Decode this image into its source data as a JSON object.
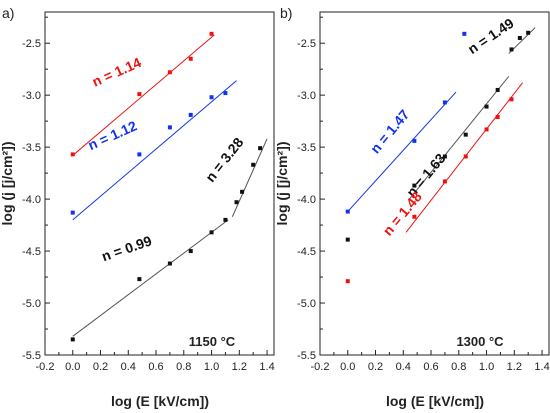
{
  "colors": {
    "red": "#ee1111",
    "blue": "#1133ee",
    "black": "#111111",
    "frame": "#222222",
    "fit_black": "#555555"
  },
  "chart_data": [
    {
      "type": "scatter",
      "panel_label": "a)",
      "temperature_label": "1150 °C",
      "xlabel": "log (E [kV/cm])",
      "ylabel": "log (j [j/cm²])",
      "xlim": [
        -0.2,
        1.45
      ],
      "ylim": [
        -5.5,
        -2.2
      ],
      "x_ticks": [
        "-0.2",
        "0.0",
        "0.2",
        "0.4",
        "0.6",
        "0.8",
        "1.0",
        "1.2",
        "1.4"
      ],
      "y_ticks": [
        "-5.5",
        "-5.0",
        "-4.5",
        "-4.0",
        "-3.5",
        "-3.0",
        "-2.5"
      ],
      "grid": false,
      "series": [
        {
          "color": "red",
          "points": [
            [
              0.0,
              -3.57
            ],
            [
              0.48,
              -2.99
            ],
            [
              0.7,
              -2.78
            ],
            [
              0.85,
              -2.65
            ],
            [
              1.0,
              -2.41
            ]
          ],
          "fit": [
            [
              0.0,
              -3.58
            ],
            [
              1.02,
              -2.42
            ]
          ]
        },
        {
          "color": "blue",
          "points": [
            [
              0.0,
              -4.13
            ],
            [
              0.48,
              -3.57
            ],
            [
              0.7,
              -3.31
            ],
            [
              0.85,
              -3.19
            ],
            [
              1.0,
              -3.02
            ],
            [
              1.1,
              -2.98
            ]
          ],
          "fit": [
            [
              0.0,
              -4.2
            ],
            [
              1.18,
              -2.86
            ]
          ]
        },
        {
          "color": "black",
          "points": [
            [
              0.0,
              -5.35
            ],
            [
              0.48,
              -4.77
            ],
            [
              0.7,
              -4.62
            ],
            [
              0.85,
              -4.5
            ],
            [
              1.0,
              -4.32
            ],
            [
              1.1,
              -4.2
            ],
            [
              1.18,
              -4.03
            ],
            [
              1.22,
              -3.93
            ],
            [
              1.3,
              -3.67
            ],
            [
              1.35,
              -3.51
            ]
          ],
          "fit": [
            [
              0.0,
              -5.32
            ],
            [
              1.12,
              -4.2
            ]
          ],
          "fit2": [
            [
              1.15,
              -4.17
            ],
            [
              1.4,
              -3.42
            ]
          ]
        }
      ],
      "annotations": [
        {
          "text": "n = 1.14",
          "color": "red",
          "x": 0.33,
          "y": -2.82,
          "angle": -24
        },
        {
          "text": "n = 1.12",
          "color": "blue",
          "x": 0.3,
          "y": -3.43,
          "angle": -24
        },
        {
          "text": "n = 0.99",
          "color": "black",
          "x": 0.4,
          "y": -4.52,
          "angle": -19
        },
        {
          "text": "n = 3.28",
          "color": "black",
          "x": 1.12,
          "y": -3.65,
          "angle": -52
        }
      ]
    },
    {
      "type": "scatter",
      "panel_label": "b)",
      "temperature_label": "1300 °C",
      "xlabel": "log (E [kV/cm])",
      "ylabel": "log (j [j/cm²])",
      "xlim": [
        -0.2,
        1.45
      ],
      "ylim": [
        -5.5,
        -2.2
      ],
      "x_ticks": [
        "-0.2",
        "0.0",
        "0.2",
        "0.4",
        "0.6",
        "0.8",
        "1.0",
        "1.2",
        "1.4"
      ],
      "y_ticks": [
        "-5.5",
        "-5.0",
        "-4.5",
        "-4.0",
        "-3.5",
        "-3.0",
        "-2.5"
      ],
      "grid": false,
      "series": [
        {
          "color": "blue",
          "points": [
            [
              0.0,
              -4.12
            ],
            [
              0.48,
              -3.44
            ],
            [
              0.7,
              -3.07
            ],
            [
              0.84,
              -2.41
            ]
          ],
          "fit": [
            [
              0.0,
              -4.12
            ],
            [
              0.78,
              -2.97
            ]
          ]
        },
        {
          "color": "black",
          "points": [
            [
              0.0,
              -4.39
            ],
            [
              0.48,
              -3.87
            ],
            [
              0.7,
              -3.59
            ],
            [
              0.85,
              -3.38
            ],
            [
              1.0,
              -3.11
            ],
            [
              1.08,
              -2.95
            ],
            [
              1.18,
              -2.56
            ],
            [
              1.24,
              -2.45
            ],
            [
              1.3,
              -2.4
            ]
          ],
          "fit": [
            [
              0.45,
              -3.99
            ],
            [
              1.16,
              -2.82
            ]
          ],
          "fit2": [
            [
              1.16,
              -2.6
            ],
            [
              1.35,
              -2.35
            ]
          ]
        },
        {
          "color": "red",
          "points": [
            [
              0.0,
              -4.79
            ],
            [
              0.48,
              -4.17
            ],
            [
              0.7,
              -3.83
            ],
            [
              0.85,
              -3.59
            ],
            [
              1.0,
              -3.33
            ],
            [
              1.08,
              -3.21
            ],
            [
              1.18,
              -3.04
            ]
          ],
          "fit": [
            [
              0.42,
              -4.32
            ],
            [
              1.26,
              -2.88
            ]
          ]
        }
      ],
      "annotations": [
        {
          "text": "n = 1.47",
          "color": "blue",
          "x": 0.33,
          "y": -3.38,
          "angle": -50
        },
        {
          "text": "n = 1.63",
          "color": "black",
          "x": 0.59,
          "y": -3.8,
          "angle": -50
        },
        {
          "text": "n = 1.48",
          "color": "red",
          "x": 0.42,
          "y": -4.17,
          "angle": -50
        },
        {
          "text": "n = 1.49",
          "color": "black",
          "x": 1.05,
          "y": -2.47,
          "angle": -34
        }
      ]
    }
  ]
}
